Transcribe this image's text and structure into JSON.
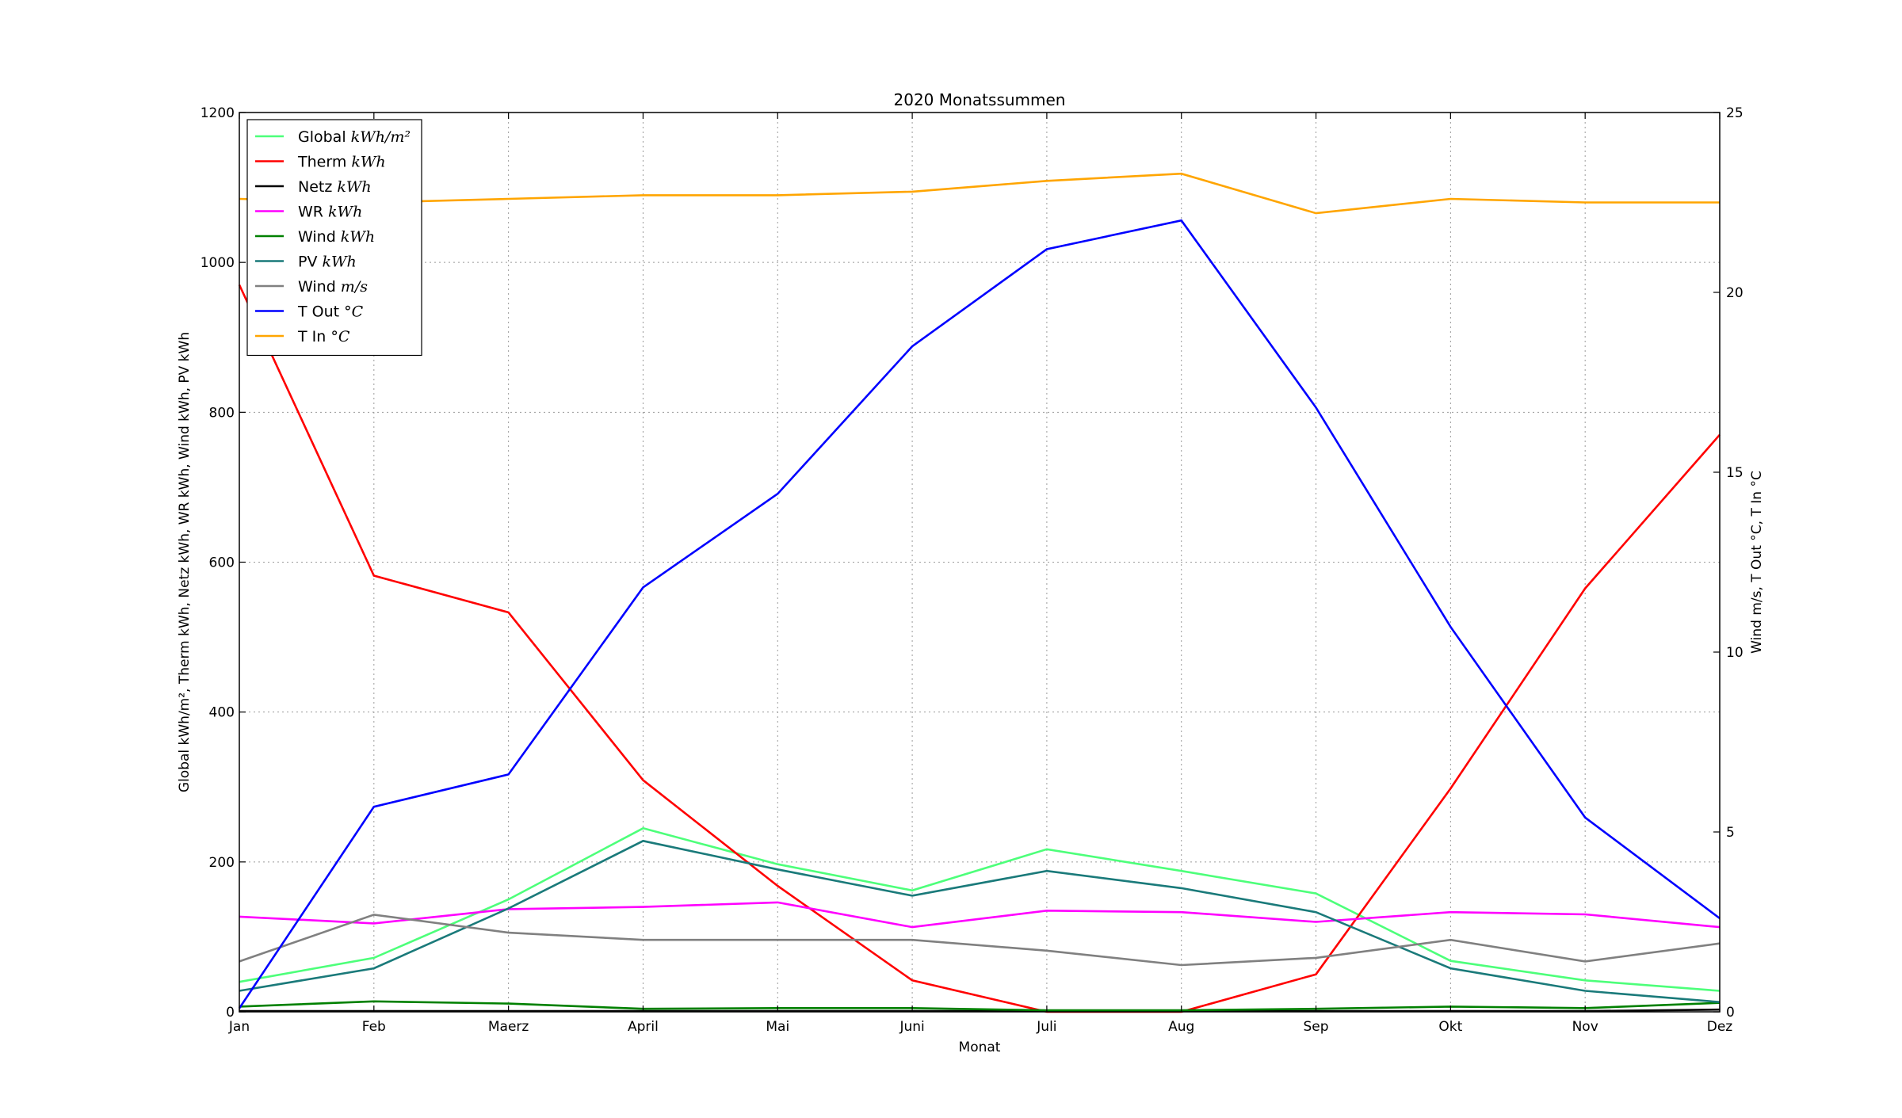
{
  "chart_data": {
    "type": "line",
    "title": "2020 Monatssummen",
    "xlabel": "Monat",
    "ylabel_left": "Global kWh/m², Therm kWh, Netz kWh, WR kWh, Wind kWh, PV kWh",
    "ylabel_right": "Wind m/s, T Out °C, T In °C",
    "categories": [
      "Jan",
      "Feb",
      "Maerz",
      "April",
      "Mai",
      "Juni",
      "Juli",
      "Aug",
      "Sep",
      "Okt",
      "Nov",
      "Dez"
    ],
    "ylim_left": [
      0,
      1200
    ],
    "ylim_right": [
      0,
      25
    ],
    "yticks_left": [
      "0",
      "200",
      "400",
      "600",
      "800",
      "1000",
      "1200"
    ],
    "yticks_right": [
      "0",
      "5",
      "10",
      "15",
      "20",
      "25"
    ],
    "grid": true,
    "legend_position": "upper-left",
    "series": [
      {
        "name": "Global",
        "unit": "kWh/m²",
        "axis": "left",
        "color": "#4dff7a",
        "values": [
          40,
          72,
          150,
          245,
          197,
          162,
          217,
          188,
          158,
          68,
          42,
          28
        ]
      },
      {
        "name": "Therm",
        "unit": "kWh",
        "axis": "left",
        "color": "#ff0000",
        "values": [
          970,
          582,
          533,
          309,
          168,
          42,
          0,
          0,
          50,
          298,
          565,
          770
        ]
      },
      {
        "name": "Netz",
        "unit": "kWh",
        "axis": "left",
        "color": "#000000",
        "values": [
          1,
          1,
          1,
          1,
          1,
          1,
          1,
          1,
          1,
          1,
          1,
          3
        ]
      },
      {
        "name": "WR",
        "unit": "kWh",
        "axis": "left",
        "color": "#ff00ff",
        "values": [
          127,
          118,
          137,
          140,
          146,
          113,
          135,
          133,
          120,
          133,
          130,
          113
        ]
      },
      {
        "name": "Wind",
        "unit": "kWh",
        "axis": "left",
        "color": "#008000",
        "values": [
          7,
          14,
          11,
          4,
          5,
          5,
          2,
          2,
          4,
          7,
          5,
          12
        ]
      },
      {
        "name": "PV",
        "unit": "kWh",
        "axis": "left",
        "color": "#1a7a7a",
        "values": [
          28,
          58,
          138,
          228,
          190,
          155,
          188,
          165,
          133,
          58,
          28,
          13
        ]
      },
      {
        "name": "Wind",
        "unit": "m/s",
        "axis": "right",
        "color": "#808080",
        "values": [
          1.4,
          2.7,
          2.2,
          2.0,
          2.0,
          2.0,
          1.7,
          1.3,
          1.5,
          2.0,
          1.4,
          1.9
        ]
      },
      {
        "name": "T Out",
        "unit": "°C",
        "axis": "right",
        "color": "#0000ff",
        "values": [
          0.1,
          5.7,
          6.6,
          11.8,
          14.4,
          18.5,
          21.2,
          22.0,
          16.8,
          10.7,
          5.4,
          2.6
        ]
      },
      {
        "name": "T In",
        "unit": "°C",
        "axis": "right",
        "color": "#ffa500",
        "values": [
          22.6,
          22.5,
          22.6,
          22.7,
          22.7,
          22.8,
          23.1,
          23.3,
          22.2,
          22.6,
          22.5,
          22.5
        ]
      }
    ]
  }
}
